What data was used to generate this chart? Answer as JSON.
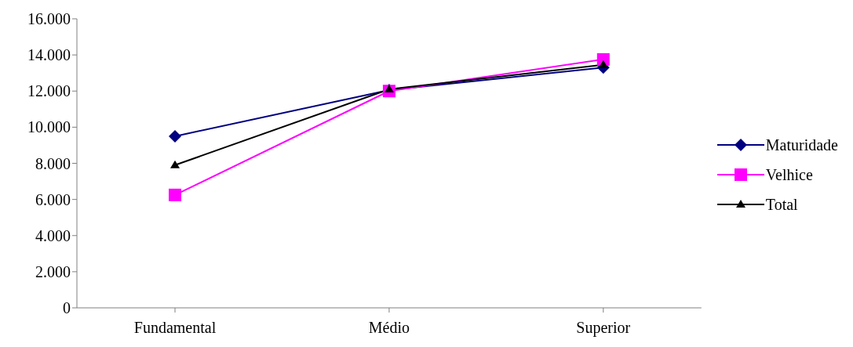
{
  "chart_data": {
    "type": "line",
    "categories": [
      "Fundamental",
      "Médio",
      "Superior"
    ],
    "series": [
      {
        "name": "Maturidade",
        "color": "#000080",
        "marker": "diamond",
        "values": [
          9500,
          12050,
          13300
        ]
      },
      {
        "name": "Velhice",
        "color": "#ff00ff",
        "marker": "square",
        "values": [
          6250,
          12000,
          13750
        ]
      },
      {
        "name": "Total",
        "color": "#000000",
        "marker": "triangle",
        "values": [
          7900,
          12100,
          13450
        ]
      }
    ],
    "ylim": [
      0,
      16000
    ],
    "yticks": [
      {
        "value": 0,
        "label": "0"
      },
      {
        "value": 2000,
        "label": "2.000"
      },
      {
        "value": 4000,
        "label": "4.000"
      },
      {
        "value": 6000,
        "label": "6.000"
      },
      {
        "value": 8000,
        "label": "8.000"
      },
      {
        "value": 10000,
        "label": "10.000"
      },
      {
        "value": 12000,
        "label": "12.000"
      },
      {
        "value": 14000,
        "label": "14.000"
      },
      {
        "value": 16000,
        "label": "16.000"
      }
    ],
    "grid": false,
    "legend": "right",
    "line_style": "solid"
  }
}
